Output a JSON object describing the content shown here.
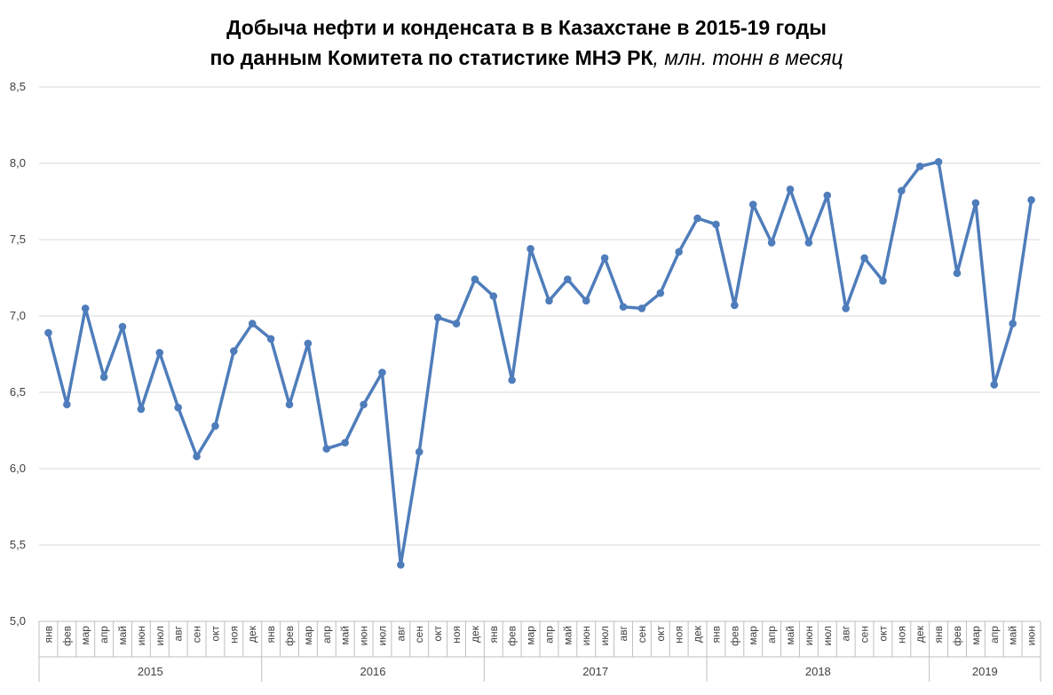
{
  "title": {
    "line1": "Добыча нефти и конденсата в в Казахстане в 2015-19 годы",
    "line2_bold": "по данным Комитета по статистике МНЭ РК",
    "line2_unit": ", млн. тонн в месяц"
  },
  "colors": {
    "line": "#4f7dbb",
    "grid": "#d9d9d9",
    "axis": "#bfbfbf",
    "text": "#404040"
  },
  "chart_data": {
    "type": "line",
    "title": "Добыча нефти и конденсата в в Казахстане в 2015-19 годы по данным Комитета по статистике МНЭ РК, млн. тонн в месяц",
    "xlabel": "",
    "ylabel": "",
    "ylim": [
      5.0,
      8.5
    ],
    "yticks": [
      "5,0",
      "5,5",
      "6,0",
      "6,5",
      "7,0",
      "7,5",
      "8,0",
      "8,5"
    ],
    "ytick_values": [
      5.0,
      5.5,
      6.0,
      6.5,
      7.0,
      7.5,
      8.0,
      8.5
    ],
    "grid": true,
    "legend": "none",
    "years": [
      {
        "label": "2015",
        "months": 12
      },
      {
        "label": "2016",
        "months": 12
      },
      {
        "label": "2017",
        "months": 12
      },
      {
        "label": "2018",
        "months": 12
      },
      {
        "label": "2019",
        "months": 6
      }
    ],
    "categories": [
      "янв",
      "фев",
      "мар",
      "апр",
      "май",
      "июн",
      "июл",
      "авг",
      "сен",
      "окт",
      "ноя",
      "дек",
      "янв",
      "фев",
      "мар",
      "апр",
      "май",
      "июн",
      "июл",
      "авг",
      "сен",
      "окт",
      "ноя",
      "дек",
      "янв",
      "фев",
      "мар",
      "апр",
      "май",
      "июн",
      "июл",
      "авг",
      "сен",
      "окт",
      "ноя",
      "дек",
      "янв",
      "фев",
      "мар",
      "апр",
      "май",
      "июн",
      "июл",
      "авг",
      "сен",
      "окт",
      "ноя",
      "дек",
      "янв",
      "фев",
      "мар",
      "апр",
      "май",
      "июн"
    ],
    "values": [
      6.89,
      6.42,
      7.05,
      6.6,
      6.93,
      6.39,
      6.76,
      6.4,
      6.08,
      6.28,
      6.77,
      6.95,
      6.85,
      6.42,
      6.82,
      6.13,
      6.17,
      6.42,
      6.63,
      5.37,
      6.11,
      6.99,
      6.95,
      7.24,
      7.13,
      6.58,
      7.44,
      7.1,
      7.24,
      7.1,
      7.38,
      7.06,
      7.05,
      7.15,
      7.42,
      7.64,
      7.6,
      7.07,
      7.73,
      7.48,
      7.83,
      7.48,
      7.79,
      7.05,
      7.38,
      7.23,
      7.82,
      7.98,
      8.01,
      7.28,
      7.74,
      6.55,
      6.95,
      7.76
    ]
  }
}
